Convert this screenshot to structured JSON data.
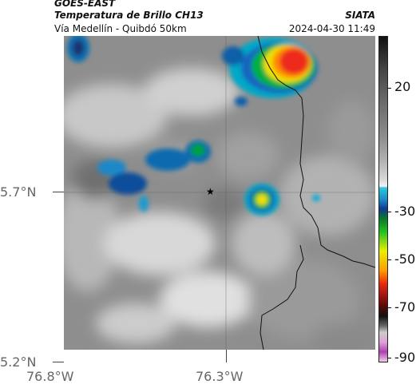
{
  "header": {
    "satellite": "GOES-EAST",
    "product": "Temperatura de Brillo CH13",
    "area": "Vía Medellín - Quibdó 50km",
    "organization": "SIATA",
    "timestamp": "2024-04-30 11:49"
  },
  "axes": {
    "lon_ticks": [
      "76.8°W",
      "76.3°W"
    ],
    "lat_ticks": [
      "5.7°N",
      "5.2°N"
    ]
  },
  "colorbar": {
    "ticks": [
      "20",
      "-30",
      "-50",
      "-70",
      "-90"
    ]
  },
  "marker": {
    "symbol": "★"
  }
}
